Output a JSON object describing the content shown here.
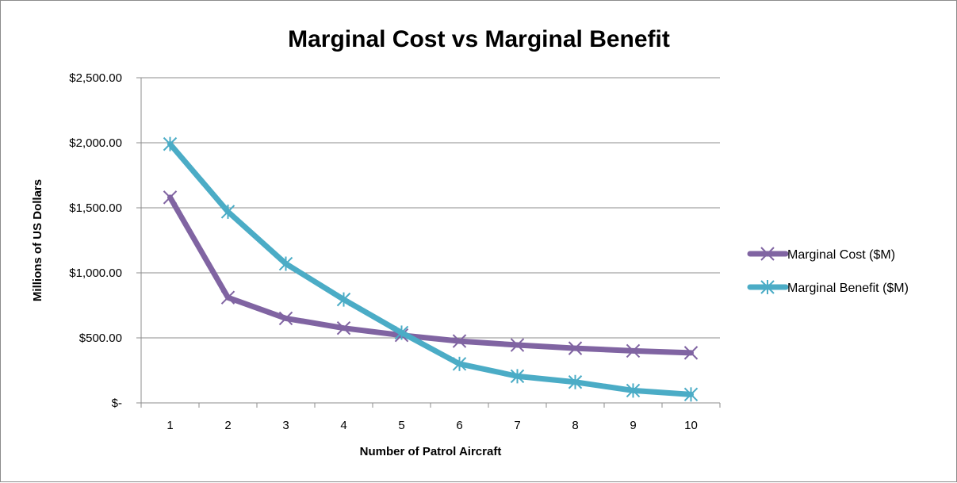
{
  "chart_data": {
    "type": "line",
    "title": "Marginal Cost vs Marginal Benefit",
    "xlabel": "Number of Patrol Aircraft",
    "ylabel": "Millions of US Dollars",
    "categories": [
      "1",
      "2",
      "3",
      "4",
      "5",
      "6",
      "7",
      "8",
      "9",
      "10"
    ],
    "ylim": [
      0,
      2500
    ],
    "yticks": [
      {
        "value": 0,
        "label": "$-"
      },
      {
        "value": 500,
        "label": "$500.00"
      },
      {
        "value": 1000,
        "label": "$1,000.00"
      },
      {
        "value": 1500,
        "label": "$1,500.00"
      },
      {
        "value": 2000,
        "label": "$2,000.00"
      },
      {
        "value": 2500,
        "label": "$2,500.00"
      }
    ],
    "grid": true,
    "legend_position": "right",
    "series": [
      {
        "name": "Marginal Cost ($M)",
        "color": "#8064a2",
        "marker": "x",
        "values": [
          1580,
          810,
          650,
          575,
          520,
          475,
          445,
          420,
          400,
          385
        ]
      },
      {
        "name": "Marginal Benefit ($M)",
        "color": "#4bacc6",
        "marker": "star",
        "values": [
          1990,
          1470,
          1070,
          795,
          540,
          300,
          205,
          160,
          95,
          65
        ]
      }
    ]
  }
}
